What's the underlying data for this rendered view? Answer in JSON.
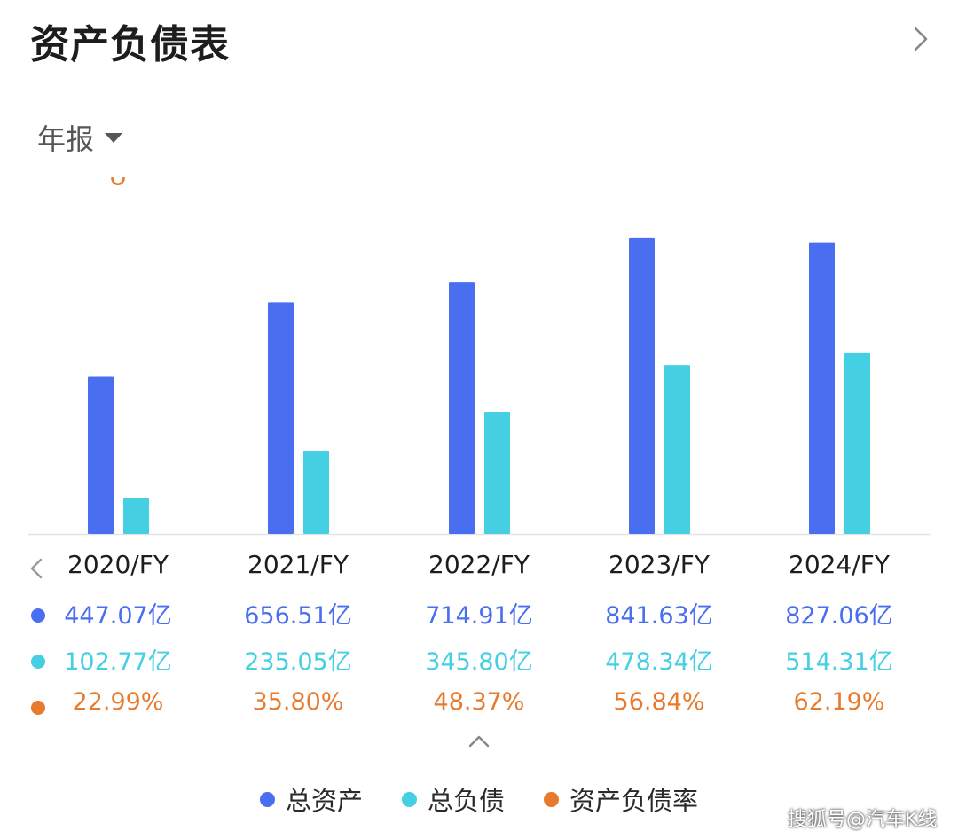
{
  "header": {
    "title": "资产负债表",
    "period_label": "年报"
  },
  "colors": {
    "total_assets": "#4a6ef0",
    "total_liabilities": "#45cfe3",
    "ratio": "#e87a2e"
  },
  "chart_data": {
    "type": "bar",
    "categories": [
      "2020/FY",
      "2021/FY",
      "2022/FY",
      "2023/FY",
      "2024/FY"
    ],
    "series": [
      {
        "name": "总资产",
        "kind": "bar",
        "values": [
          447.07,
          656.51,
          714.91,
          841.63,
          827.06
        ],
        "labels": [
          "447.07亿",
          "656.51亿",
          "714.91亿",
          "841.63亿",
          "827.06亿"
        ]
      },
      {
        "name": "总负债",
        "kind": "bar",
        "values": [
          102.77,
          235.05,
          345.8,
          478.34,
          514.31
        ],
        "labels": [
          "102.77亿",
          "235.05亿",
          "345.80亿",
          "478.34亿",
          "514.31亿"
        ]
      },
      {
        "name": "资产负债率",
        "kind": "line",
        "values": [
          22.99,
          35.8,
          48.37,
          56.84,
          62.19
        ],
        "labels": [
          "22.99%",
          "35.80%",
          "48.37%",
          "56.84%",
          "62.19%"
        ]
      }
    ],
    "legend_position": "bottom",
    "grid": false
  },
  "watermark": "搜狐号@汽车K线"
}
